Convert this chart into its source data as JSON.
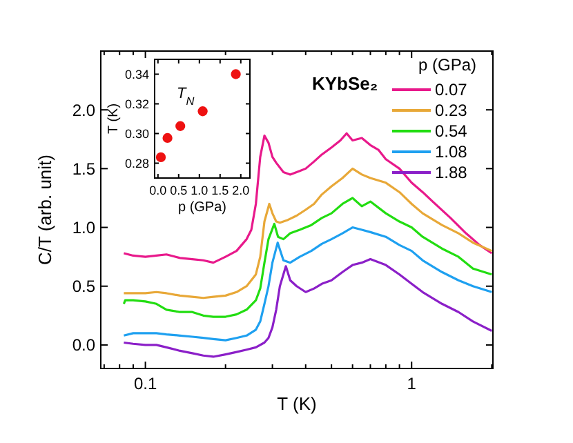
{
  "chart_data": [
    {
      "type": "line",
      "xlabel": "T (K)",
      "ylabel": "C/T (arb. unit)",
      "legend_title": "p (GPa)",
      "legend": "top right",
      "log": "x",
      "grid": false,
      "line_style": "solid",
      "annotations": [
        "KYbSe₂"
      ],
      "xlim": [
        0.068,
        2.02
      ],
      "ylim": [
        -0.2,
        2.5
      ],
      "xticks": [
        {
          "value": 0.07,
          "label": null
        },
        {
          "value": 0.08,
          "label": null
        },
        {
          "value": 0.09,
          "label": null
        },
        {
          "value": 0.1,
          "label": "0.1"
        },
        {
          "value": 0.2,
          "label": null
        },
        {
          "value": 0.3,
          "label": null
        },
        {
          "value": 0.4,
          "label": null
        },
        {
          "value": 0.5,
          "label": null
        },
        {
          "value": 0.6,
          "label": null
        },
        {
          "value": 0.7,
          "label": null
        },
        {
          "value": 0.8,
          "label": null
        },
        {
          "value": 0.9,
          "label": null
        },
        {
          "value": 1,
          "label": "1"
        },
        {
          "value": 2,
          "label": null
        }
      ],
      "yticks": [
        {
          "value": 0,
          "label": "0.0"
        },
        {
          "value": 0.5,
          "label": "0.5"
        },
        {
          "value": 1,
          "label": "1.0"
        },
        {
          "value": 1.5,
          "label": "1.5"
        },
        {
          "value": 2,
          "label": "2.0"
        }
      ],
      "series": [
        {
          "name": "0.07",
          "color": "#e8198b",
          "x": [
            0.083,
            0.09,
            0.1,
            0.11,
            0.12,
            0.135,
            0.15,
            0.165,
            0.18,
            0.2,
            0.22,
            0.24,
            0.25,
            0.26,
            0.27,
            0.28,
            0.29,
            0.3,
            0.31,
            0.33,
            0.35,
            0.38,
            0.4,
            0.43,
            0.46,
            0.5,
            0.54,
            0.57,
            0.6,
            0.65,
            0.7,
            0.75,
            0.8,
            0.9,
            1.0,
            1.1,
            1.2,
            1.4,
            1.6,
            1.8,
            2.0
          ],
          "values": [
            0.78,
            0.76,
            0.75,
            0.76,
            0.77,
            0.74,
            0.73,
            0.72,
            0.7,
            0.75,
            0.8,
            0.9,
            0.98,
            1.2,
            1.6,
            1.78,
            1.72,
            1.6,
            1.55,
            1.47,
            1.45,
            1.48,
            1.5,
            1.56,
            1.62,
            1.68,
            1.74,
            1.8,
            1.74,
            1.76,
            1.7,
            1.66,
            1.58,
            1.5,
            1.38,
            1.3,
            1.22,
            1.08,
            0.95,
            0.85,
            0.78
          ]
        },
        {
          "name": "0.23",
          "color": "#e8a838",
          "x": [
            0.083,
            0.09,
            0.1,
            0.11,
            0.12,
            0.135,
            0.15,
            0.165,
            0.18,
            0.2,
            0.22,
            0.24,
            0.26,
            0.27,
            0.28,
            0.292,
            0.3,
            0.31,
            0.32,
            0.34,
            0.37,
            0.4,
            0.43,
            0.46,
            0.5,
            0.55,
            0.6,
            0.65,
            0.7,
            0.8,
            0.9,
            1.0,
            1.1,
            1.3,
            1.5,
            1.7,
            2.0
          ],
          "values": [
            0.44,
            0.44,
            0.44,
            0.45,
            0.44,
            0.42,
            0.41,
            0.4,
            0.41,
            0.42,
            0.45,
            0.5,
            0.6,
            0.75,
            1.05,
            1.2,
            1.12,
            1.05,
            1.04,
            1.06,
            1.1,
            1.15,
            1.2,
            1.28,
            1.35,
            1.42,
            1.5,
            1.45,
            1.42,
            1.38,
            1.3,
            1.2,
            1.12,
            1.02,
            0.95,
            0.87,
            0.8
          ]
        },
        {
          "name": "0.54",
          "color": "#22dd11",
          "x": [
            0.083,
            0.084,
            0.09,
            0.1,
            0.11,
            0.12,
            0.135,
            0.15,
            0.165,
            0.18,
            0.2,
            0.22,
            0.24,
            0.26,
            0.27,
            0.28,
            0.29,
            0.305,
            0.315,
            0.33,
            0.35,
            0.38,
            0.42,
            0.46,
            0.5,
            0.55,
            0.6,
            0.65,
            0.7,
            0.8,
            0.9,
            1.0,
            1.1,
            1.3,
            1.5,
            1.7,
            2.0
          ],
          "values": [
            0.35,
            0.38,
            0.38,
            0.37,
            0.35,
            0.3,
            0.28,
            0.28,
            0.25,
            0.24,
            0.24,
            0.26,
            0.3,
            0.38,
            0.48,
            0.7,
            0.9,
            1.03,
            0.92,
            0.9,
            0.95,
            0.98,
            1.02,
            1.08,
            1.12,
            1.2,
            1.25,
            1.18,
            1.22,
            1.12,
            1.05,
            1.0,
            0.92,
            0.82,
            0.75,
            0.65,
            0.6
          ]
        },
        {
          "name": "1.08",
          "color": "#1ea0f0",
          "x": [
            0.083,
            0.09,
            0.1,
            0.11,
            0.12,
            0.135,
            0.15,
            0.165,
            0.18,
            0.2,
            0.22,
            0.24,
            0.26,
            0.27,
            0.28,
            0.29,
            0.3,
            0.314,
            0.33,
            0.35,
            0.38,
            0.42,
            0.46,
            0.5,
            0.55,
            0.6,
            0.65,
            0.7,
            0.8,
            0.9,
            1.0,
            1.1,
            1.3,
            1.5,
            1.7,
            2.0
          ],
          "values": [
            0.08,
            0.1,
            0.1,
            0.1,
            0.09,
            0.08,
            0.07,
            0.06,
            0.05,
            0.04,
            0.06,
            0.08,
            0.13,
            0.2,
            0.35,
            0.5,
            0.7,
            0.87,
            0.72,
            0.7,
            0.75,
            0.8,
            0.86,
            0.9,
            0.95,
            1.0,
            0.98,
            0.96,
            0.92,
            0.85,
            0.8,
            0.72,
            0.62,
            0.55,
            0.5,
            0.45
          ]
        },
        {
          "name": "1.88",
          "color": "#8b1fc8",
          "x": [
            0.083,
            0.09,
            0.1,
            0.11,
            0.12,
            0.135,
            0.15,
            0.165,
            0.18,
            0.2,
            0.22,
            0.24,
            0.26,
            0.28,
            0.29,
            0.3,
            0.31,
            0.32,
            0.337,
            0.35,
            0.37,
            0.4,
            0.43,
            0.46,
            0.5,
            0.55,
            0.6,
            0.65,
            0.7,
            0.8,
            0.9,
            1.0,
            1.1,
            1.3,
            1.5,
            1.7,
            2.0
          ],
          "values": [
            0.02,
            0.01,
            0.0,
            0.0,
            -0.02,
            -0.05,
            -0.07,
            -0.09,
            -0.1,
            -0.08,
            -0.06,
            -0.04,
            -0.02,
            0.02,
            0.06,
            0.15,
            0.3,
            0.5,
            0.67,
            0.55,
            0.5,
            0.45,
            0.48,
            0.52,
            0.55,
            0.62,
            0.68,
            0.7,
            0.73,
            0.68,
            0.6,
            0.52,
            0.45,
            0.35,
            0.28,
            0.2,
            0.12
          ]
        }
      ]
    },
    {
      "type": "scatter",
      "xlabel": "p (GPa)",
      "ylabel": "T (K)",
      "legend": false,
      "grid": false,
      "marker": "circle",
      "annotations": [
        "T$_{N}$"
      ],
      "xlim": [
        -0.08,
        2.22
      ],
      "ylim": [
        0.27,
        0.35
      ],
      "xticks": [
        {
          "value": 0,
          "label": "0.0"
        },
        {
          "value": 0.5,
          "label": "0.5"
        },
        {
          "value": 1,
          "label": "1.0"
        },
        {
          "value": 1.5,
          "label": "1.5"
        },
        {
          "value": 2,
          "label": "2.0"
        }
      ],
      "yticks": [
        0.28,
        {
          "value": 0.3,
          "label": "0.30"
        },
        0.32,
        0.34
      ],
      "series": [
        {
          "color": "#ee1111",
          "x": [
            0.07,
            0.23,
            0.54,
            1.08,
            1.88
          ],
          "values": [
            0.284,
            0.297,
            0.305,
            0.315,
            0.34
          ]
        }
      ]
    }
  ]
}
